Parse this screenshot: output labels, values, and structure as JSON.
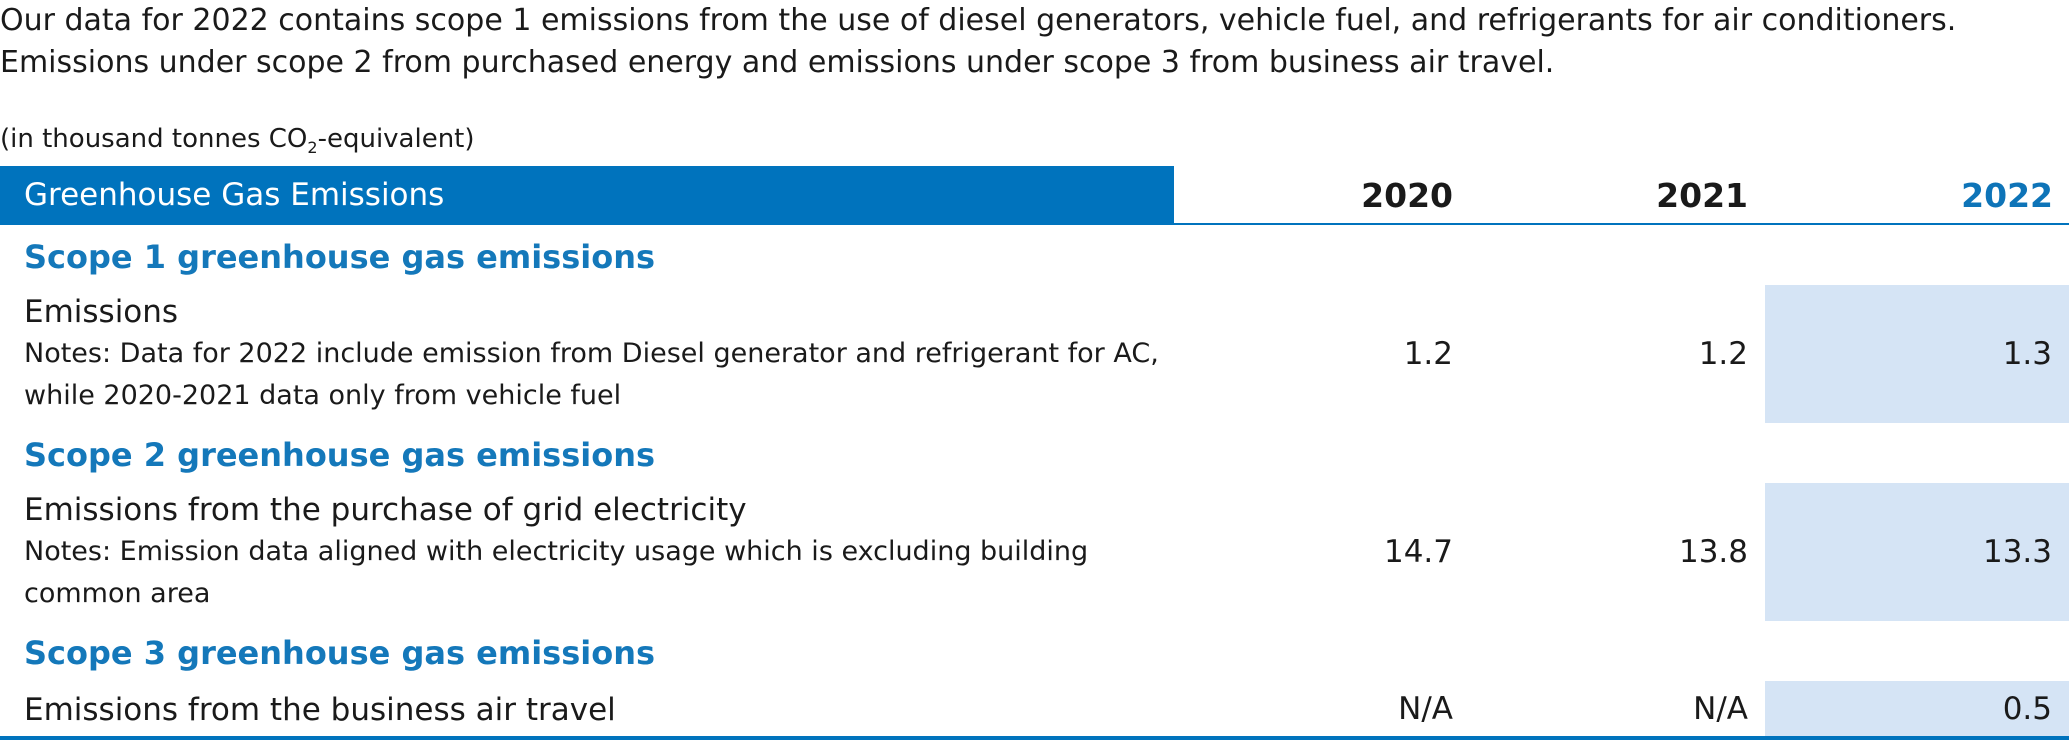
{
  "intro": {
    "line1": "Our data for 2022 contains scope 1 emissions from the use of diesel generators, vehicle fuel, and refrigerants for air conditioners.",
    "line2": "Emissions under scope 2 from purchased energy and emissions under scope 3 from business air travel."
  },
  "unit": {
    "prefix": "(in thousand tonnes CO",
    "subscript": "2",
    "suffix": "-equivalent)"
  },
  "table": {
    "header": {
      "label": "Greenhouse Gas Emissions",
      "years": [
        "2020",
        "2021",
        "2022"
      ]
    },
    "sections": [
      {
        "title": "Scope 1 greenhouse gas emissions",
        "row": {
          "label": "Emissions",
          "note": "Notes: Data for 2022 include emission from Diesel generator and refrigerant for AC, while 2020-2021 data only from vehicle fuel",
          "values": [
            "1.2",
            "1.2",
            "1.3"
          ]
        }
      },
      {
        "title": "Scope 2 greenhouse gas emissions",
        "row": {
          "label": "Emissions from the purchase of grid electricity",
          "note": "Notes: Emission data aligned with electricity usage which is excluding building common area",
          "values": [
            "14.7",
            "13.8",
            "13.3"
          ]
        }
      },
      {
        "title": "Scope 3 greenhouse gas emissions",
        "row": {
          "label": "Emissions from the business air travel",
          "values": [
            "N/A",
            "N/A",
            "0.5"
          ]
        }
      }
    ]
  },
  "colors": {
    "accent": "#0073bd",
    "scope_title": "#1478ba",
    "highlight": "#d5e4f5"
  }
}
